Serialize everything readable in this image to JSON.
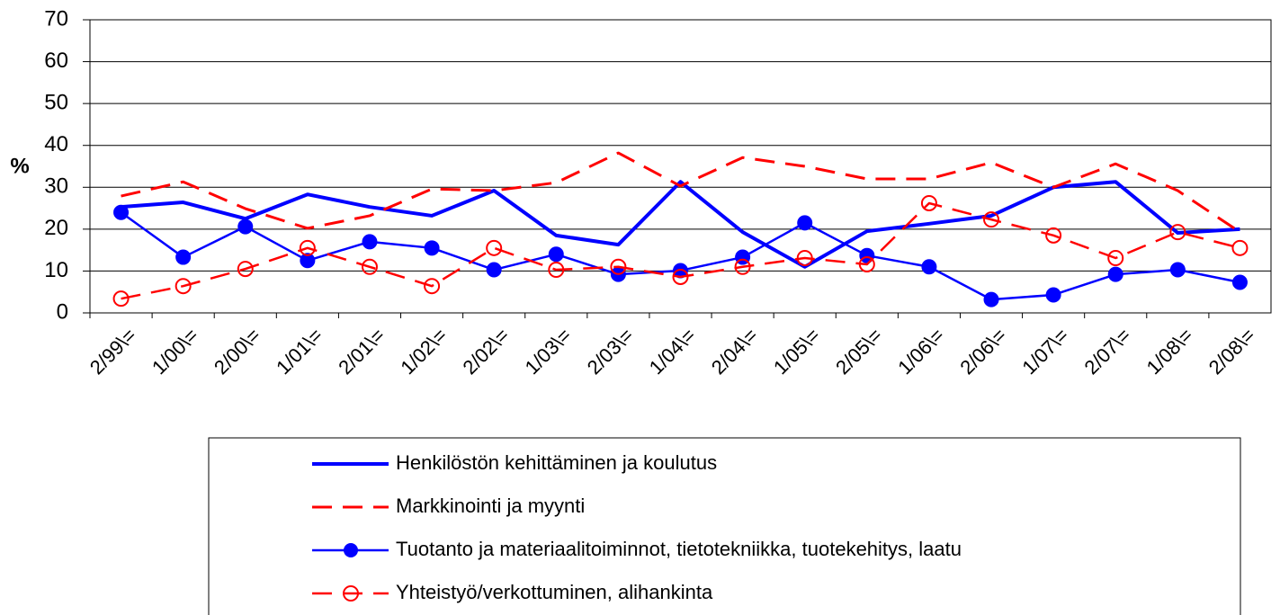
{
  "chart_data": {
    "type": "line",
    "y_label": "%",
    "categories": [
      "2/99\\=",
      "1/00\\=",
      "2/00\\=",
      "1/01\\=",
      "2/01\\=",
      "1/02\\=",
      "2/02\\=",
      "1/03\\=",
      "2/03\\=",
      "1/04\\=",
      "2/04\\=",
      "1/05\\=",
      "2/05\\=",
      "1/06\\=",
      "2/06\\=",
      "1/07\\=",
      "2/07\\=",
      "1/08\\=",
      "2/08\\="
    ],
    "series": [
      {
        "name": "Henkilöstön kehittäminen ja koulutus",
        "color": "#0000ff",
        "dash": false,
        "marker": "none",
        "width": 4,
        "values": [
          25.3,
          26.4,
          22.5,
          28.3,
          25.3,
          23.2,
          29.2,
          18.5,
          16.3,
          31.3,
          19.3,
          11,
          19.5,
          21.3,
          23.2,
          30,
          31.3,
          19.1,
          20
        ]
      },
      {
        "name": "Markkinointi ja myynti",
        "color": "#ff0000",
        "dash": true,
        "marker": "none",
        "width": 3,
        "values": [
          27.9,
          31.3,
          24.9,
          20.2,
          23.2,
          29.6,
          29.2,
          31.1,
          38.2,
          30.3,
          37.1,
          35,
          32,
          32,
          35.9,
          30,
          35.6,
          29.2,
          19.3
        ]
      },
      {
        "name": "Tuotanto ja materiaalitoiminnot, tietotekniikka, tuotekehitys, laatu",
        "color": "#0000ff",
        "dash": false,
        "marker": "filled",
        "width": 2.5,
        "values": [
          24,
          13.3,
          20.6,
          12.5,
          17,
          15.5,
          10.3,
          14,
          9.2,
          10.1,
          13.3,
          21.5,
          13.7,
          11,
          3.2,
          4.3,
          9.2,
          10.3,
          7.3
        ]
      },
      {
        "name": "Yhteistyö/verkottuminen, alihankinta",
        "color": "#ff0000",
        "dash": true,
        "marker": "open",
        "width": 2.5,
        "values": [
          3.4,
          6.4,
          10.5,
          15.5,
          11,
          6.4,
          15.5,
          10.3,
          11,
          8.6,
          11,
          13.1,
          11.6,
          26.2,
          22.3,
          18.5,
          13.1,
          19.3,
          15.5
        ]
      }
    ],
    "ylim": [
      0,
      70
    ],
    "yticks": [
      0,
      10,
      20,
      30,
      40,
      50,
      60,
      70
    ],
    "grid": true
  }
}
